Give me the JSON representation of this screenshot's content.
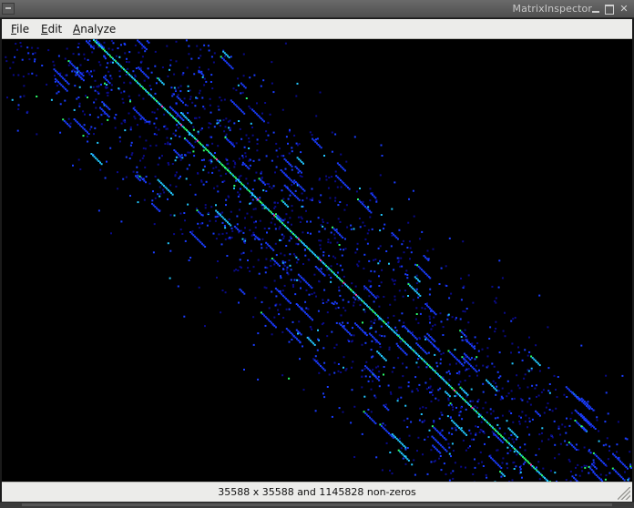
{
  "window": {
    "title": "MatrixInspector"
  },
  "menubar": {
    "items": [
      {
        "label": "File",
        "mnemonic": "F",
        "rest": "ile"
      },
      {
        "label": "Edit",
        "mnemonic": "E",
        "rest": "dit"
      },
      {
        "label": "Analyze",
        "mnemonic": "A",
        "rest": "nalyze"
      }
    ]
  },
  "matrix": {
    "rows": 35588,
    "cols": 35588,
    "nonzeros": 1145828,
    "colormap": [
      "#0a0a8a",
      "#1a3cff",
      "#22c8ff",
      "#2cff6a",
      "#ff3cbe"
    ],
    "background": "#000000"
  },
  "status": {
    "text": "35588 x 35588 and 1145828 non-zeros"
  }
}
